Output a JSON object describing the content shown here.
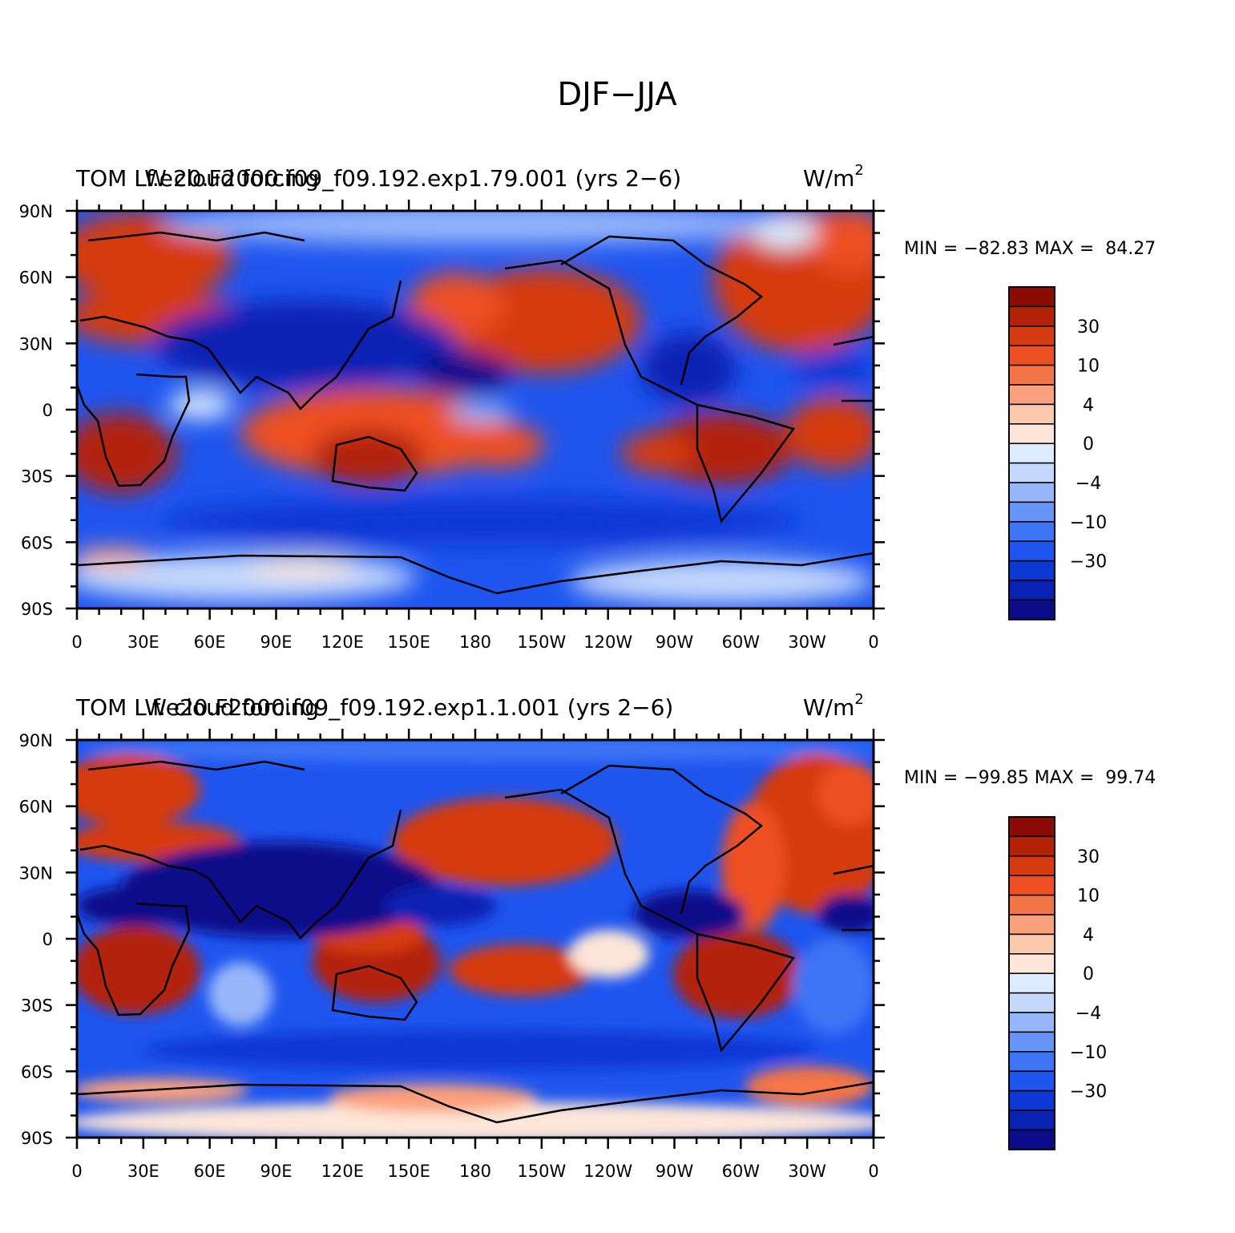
{
  "page_title": "DJF−JJA",
  "colors": {
    "levels_palette": [
      "#0b0c8a",
      "#0a22b4",
      "#0e38d4",
      "#1e55ee",
      "#3d75f5",
      "#6795f7",
      "#97b6fa",
      "#c4d8fc",
      "#dcebfe",
      "#fde6d8",
      "#fcc8ad",
      "#fba07c",
      "#f47447",
      "#ed4f22",
      "#d63a10",
      "#b32309",
      "#8a0c04"
    ]
  },
  "colorbar": {
    "labels": [
      "30",
      "10",
      "4",
      "0",
      "−4",
      "−10",
      "−30"
    ]
  },
  "axes": {
    "lat_labels": [
      "90N",
      "60N",
      "30N",
      "0",
      "30S",
      "60S",
      "90S"
    ],
    "lon_labels": [
      "0",
      "30E",
      "60E",
      "90E",
      "120E",
      "150E",
      "180",
      "150W",
      "120W",
      "90W",
      "60W",
      "30W",
      "0"
    ]
  },
  "panels": [
    {
      "title_overlay_1": "TOM LW cloud forcing",
      "title_overlay_2": "f.e20.F2000.f09_f09.192.exp1.79.001 (yrs 2−6)",
      "units": "W/m",
      "units_sup": "2",
      "min_label": "MIN = −82.83 MAX =  84.27",
      "field": "TOM LW cloud forcing",
      "min": -82.83,
      "max": 84.27
    },
    {
      "title_overlay_1": "TOM LW cloud forcing",
      "title_overlay_2": "f.e20.F2000.f09_f09.192.exp1.1.001 (yrs 2−6)",
      "units": "W/m",
      "units_sup": "2",
      "min_label": "MIN = −99.85 MAX =  99.74",
      "field": "TOM LW cloud forcing",
      "min": -99.85,
      "max": 99.74
    }
  ]
}
